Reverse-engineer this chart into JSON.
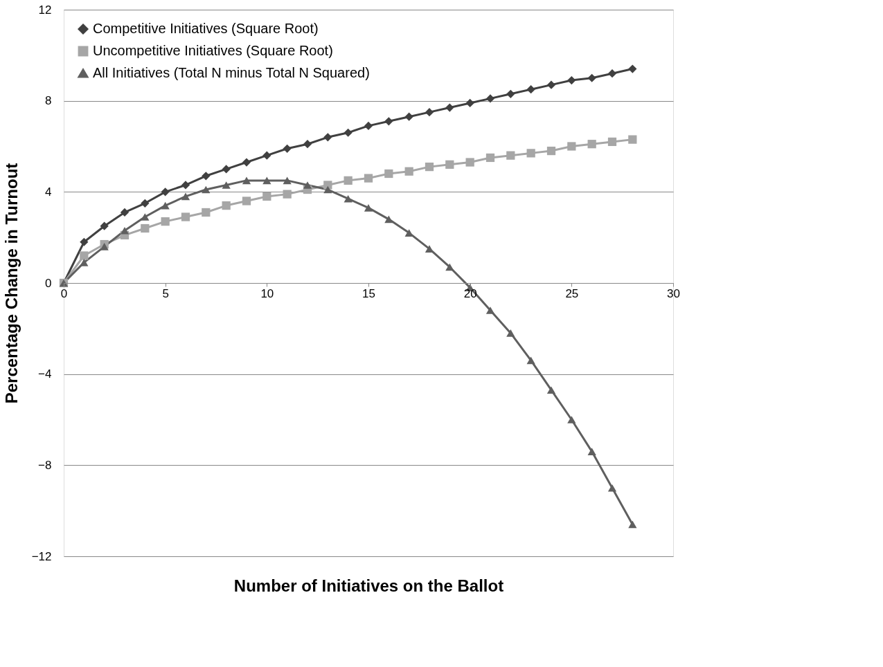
{
  "chart_data": {
    "type": "line",
    "xlabel": "Number of Initiatives on the Ballot",
    "ylabel": "Percentage Change in Turnout",
    "x": [
      0,
      1,
      2,
      3,
      4,
      5,
      6,
      7,
      8,
      9,
      10,
      11,
      12,
      13,
      14,
      15,
      16,
      17,
      18,
      19,
      20,
      21,
      22,
      23,
      24,
      25,
      26,
      27,
      28
    ],
    "series": [
      {
        "name": "Competitive Initiatives (Square Root)",
        "color": "#404040",
        "marker": "diamond",
        "values": [
          0,
          1.8,
          2.5,
          3.1,
          3.5,
          4.0,
          4.3,
          4.7,
          5.0,
          5.3,
          5.6,
          5.9,
          6.1,
          6.4,
          6.6,
          6.9,
          7.1,
          7.3,
          7.5,
          7.7,
          7.9,
          8.1,
          8.3,
          8.5,
          8.7,
          8.9,
          9.0,
          9.2,
          9.4
        ]
      },
      {
        "name": "Uncompetitive Initiatives (Square Root)",
        "color": "#a6a6a6",
        "marker": "square",
        "values": [
          0,
          1.2,
          1.7,
          2.1,
          2.4,
          2.7,
          2.9,
          3.1,
          3.4,
          3.6,
          3.8,
          3.9,
          4.1,
          4.3,
          4.5,
          4.6,
          4.8,
          4.9,
          5.1,
          5.2,
          5.3,
          5.5,
          5.6,
          5.7,
          5.8,
          6.0,
          6.1,
          6.2,
          6.3
        ]
      },
      {
        "name": "All Initiatives (Total N minus Total N Squared)",
        "color": "#5f5f5f",
        "marker": "triangle",
        "values": [
          0,
          0.9,
          1.6,
          2.3,
          2.9,
          3.4,
          3.8,
          4.1,
          4.3,
          4.5,
          4.5,
          4.5,
          4.3,
          4.1,
          3.7,
          3.3,
          2.8,
          2.2,
          1.5,
          0.7,
          -0.2,
          -1.2,
          -2.2,
          -3.4,
          -4.7,
          -6.0,
          -7.4,
          -9.0,
          -10.6
        ]
      }
    ],
    "xlim": [
      0,
      30
    ],
    "xticks": [
      0,
      5,
      10,
      15,
      20,
      25,
      30
    ],
    "ylim": [
      -12,
      12
    ],
    "yticks": [
      -12,
      -8,
      -4,
      0,
      4,
      8,
      12
    ],
    "grid": "y",
    "legend": "top left",
    "line_style": "solid"
  }
}
